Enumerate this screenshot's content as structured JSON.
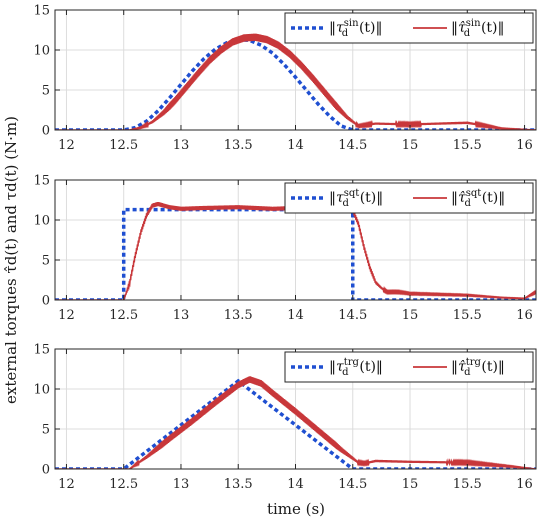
{
  "figure": {
    "ylabel": "external torques τ̂d(t) and τd(t) (N·m)",
    "xlabel": "time (s)"
  },
  "colors": {
    "ref": "#1f4fd1",
    "est": "#c8373a",
    "axis": "#262626",
    "grid": "#dcdcdc"
  },
  "chart_data": [
    {
      "type": "line",
      "xlim": [
        11.9,
        16.1
      ],
      "ylim": [
        0,
        15
      ],
      "xticks": [
        "12",
        "12.5",
        "13",
        "13.5",
        "14",
        "14.5",
        "15",
        "15.5",
        "16"
      ],
      "yticks": [
        "0",
        "5",
        "10",
        "15"
      ],
      "grid": true,
      "legend": "top-right",
      "series": [
        {
          "name": "‖τd^sin(t)‖",
          "style": "dotted",
          "x": [
            11.9,
            12.5,
            12.6,
            12.7,
            12.8,
            12.9,
            13.0,
            13.1,
            13.2,
            13.3,
            13.4,
            13.5,
            13.6,
            13.7,
            13.8,
            13.9,
            14.0,
            14.1,
            14.2,
            14.3,
            14.4,
            14.5,
            16.1
          ],
          "y": [
            0,
            0,
            0.3,
            1.1,
            2.4,
            4.0,
            5.7,
            7.4,
            8.9,
            10.1,
            10.9,
            11.3,
            11.2,
            10.6,
            9.6,
            8.2,
            6.6,
            4.9,
            3.2,
            1.7,
            0.5,
            0,
            0
          ]
        },
        {
          "name": "‖τ̂d^sin(t)‖",
          "style": "solid",
          "x": [
            11.9,
            12.55,
            12.65,
            12.75,
            12.85,
            12.95,
            13.05,
            13.15,
            13.25,
            13.35,
            13.45,
            13.55,
            13.65,
            13.75,
            13.85,
            13.95,
            14.05,
            14.15,
            14.25,
            14.35,
            14.45,
            14.55,
            14.6,
            14.7,
            15.0,
            15.5,
            15.8,
            16.1
          ],
          "y": [
            0,
            0,
            0.3,
            1.0,
            2.2,
            3.7,
            5.4,
            7.1,
            8.7,
            10.0,
            11.0,
            11.5,
            11.6,
            11.3,
            10.6,
            9.5,
            8.1,
            6.5,
            4.8,
            3.1,
            1.6,
            0.5,
            0.6,
            0.8,
            0.7,
            0.9,
            0.2,
            0
          ],
          "ripple": 0.45
        }
      ]
    },
    {
      "type": "line",
      "xlim": [
        11.9,
        16.1
      ],
      "ylim": [
        0,
        15
      ],
      "xticks": [
        "12",
        "12.5",
        "13",
        "13.5",
        "14",
        "14.5",
        "15",
        "15.5",
        "16"
      ],
      "yticks": [
        "0",
        "5",
        "10",
        "15"
      ],
      "grid": true,
      "legend": "top-right",
      "series": [
        {
          "name": "‖τd^sqt(t)‖",
          "style": "dotted",
          "x": [
            11.9,
            12.5,
            12.5,
            14.5,
            14.5,
            16.1
          ],
          "y": [
            0,
            0,
            11.3,
            11.3,
            0,
            0
          ]
        },
        {
          "name": "‖τ̂d^sqt(t)‖",
          "style": "solid",
          "x": [
            11.9,
            12.5,
            12.55,
            12.6,
            12.65,
            12.7,
            12.75,
            12.8,
            12.9,
            13.0,
            13.2,
            13.5,
            13.8,
            14.0,
            14.3,
            14.5,
            14.55,
            14.6,
            14.65,
            14.7,
            14.75,
            14.8,
            14.9,
            15.0,
            15.5,
            15.8,
            16.0,
            16.1
          ],
          "y": [
            0,
            0,
            2.0,
            5.5,
            8.5,
            10.6,
            11.8,
            12.0,
            11.6,
            11.4,
            11.5,
            11.6,
            11.4,
            11.5,
            11.3,
            11.2,
            9.5,
            6.5,
            4.0,
            2.2,
            1.5,
            1.0,
            1.0,
            0.8,
            0.6,
            0.3,
            0.2,
            1.0
          ],
          "ripple": 0.25
        }
      ]
    },
    {
      "type": "line",
      "xlim": [
        11.9,
        16.1
      ],
      "ylim": [
        0,
        15
      ],
      "xticks": [
        "12",
        "12.5",
        "13",
        "13.5",
        "14",
        "14.5",
        "15",
        "15.5",
        "16"
      ],
      "yticks": [
        "0",
        "5",
        "10",
        "15"
      ],
      "grid": true,
      "legend": "top-right",
      "series": [
        {
          "name": "‖τd^trg(t)‖",
          "style": "dotted",
          "x": [
            11.9,
            12.5,
            13.5,
            14.5,
            16.1
          ],
          "y": [
            0,
            0,
            11.0,
            0,
            0
          ]
        },
        {
          "name": "‖τ̂d^trg(t)‖",
          "style": "solid",
          "x": [
            11.9,
            12.55,
            12.7,
            12.9,
            13.1,
            13.3,
            13.5,
            13.6,
            13.7,
            13.8,
            14.0,
            14.2,
            14.4,
            14.55,
            14.6,
            14.7,
            15.0,
            15.5,
            15.9,
            16.1
          ],
          "y": [
            0,
            0,
            1.5,
            3.8,
            6.0,
            8.3,
            10.5,
            11.2,
            10.7,
            9.5,
            7.2,
            4.8,
            2.4,
            0.8,
            0.7,
            1.0,
            0.9,
            0.8,
            0.3,
            0
          ],
          "ripple": 0.4
        }
      ]
    }
  ]
}
